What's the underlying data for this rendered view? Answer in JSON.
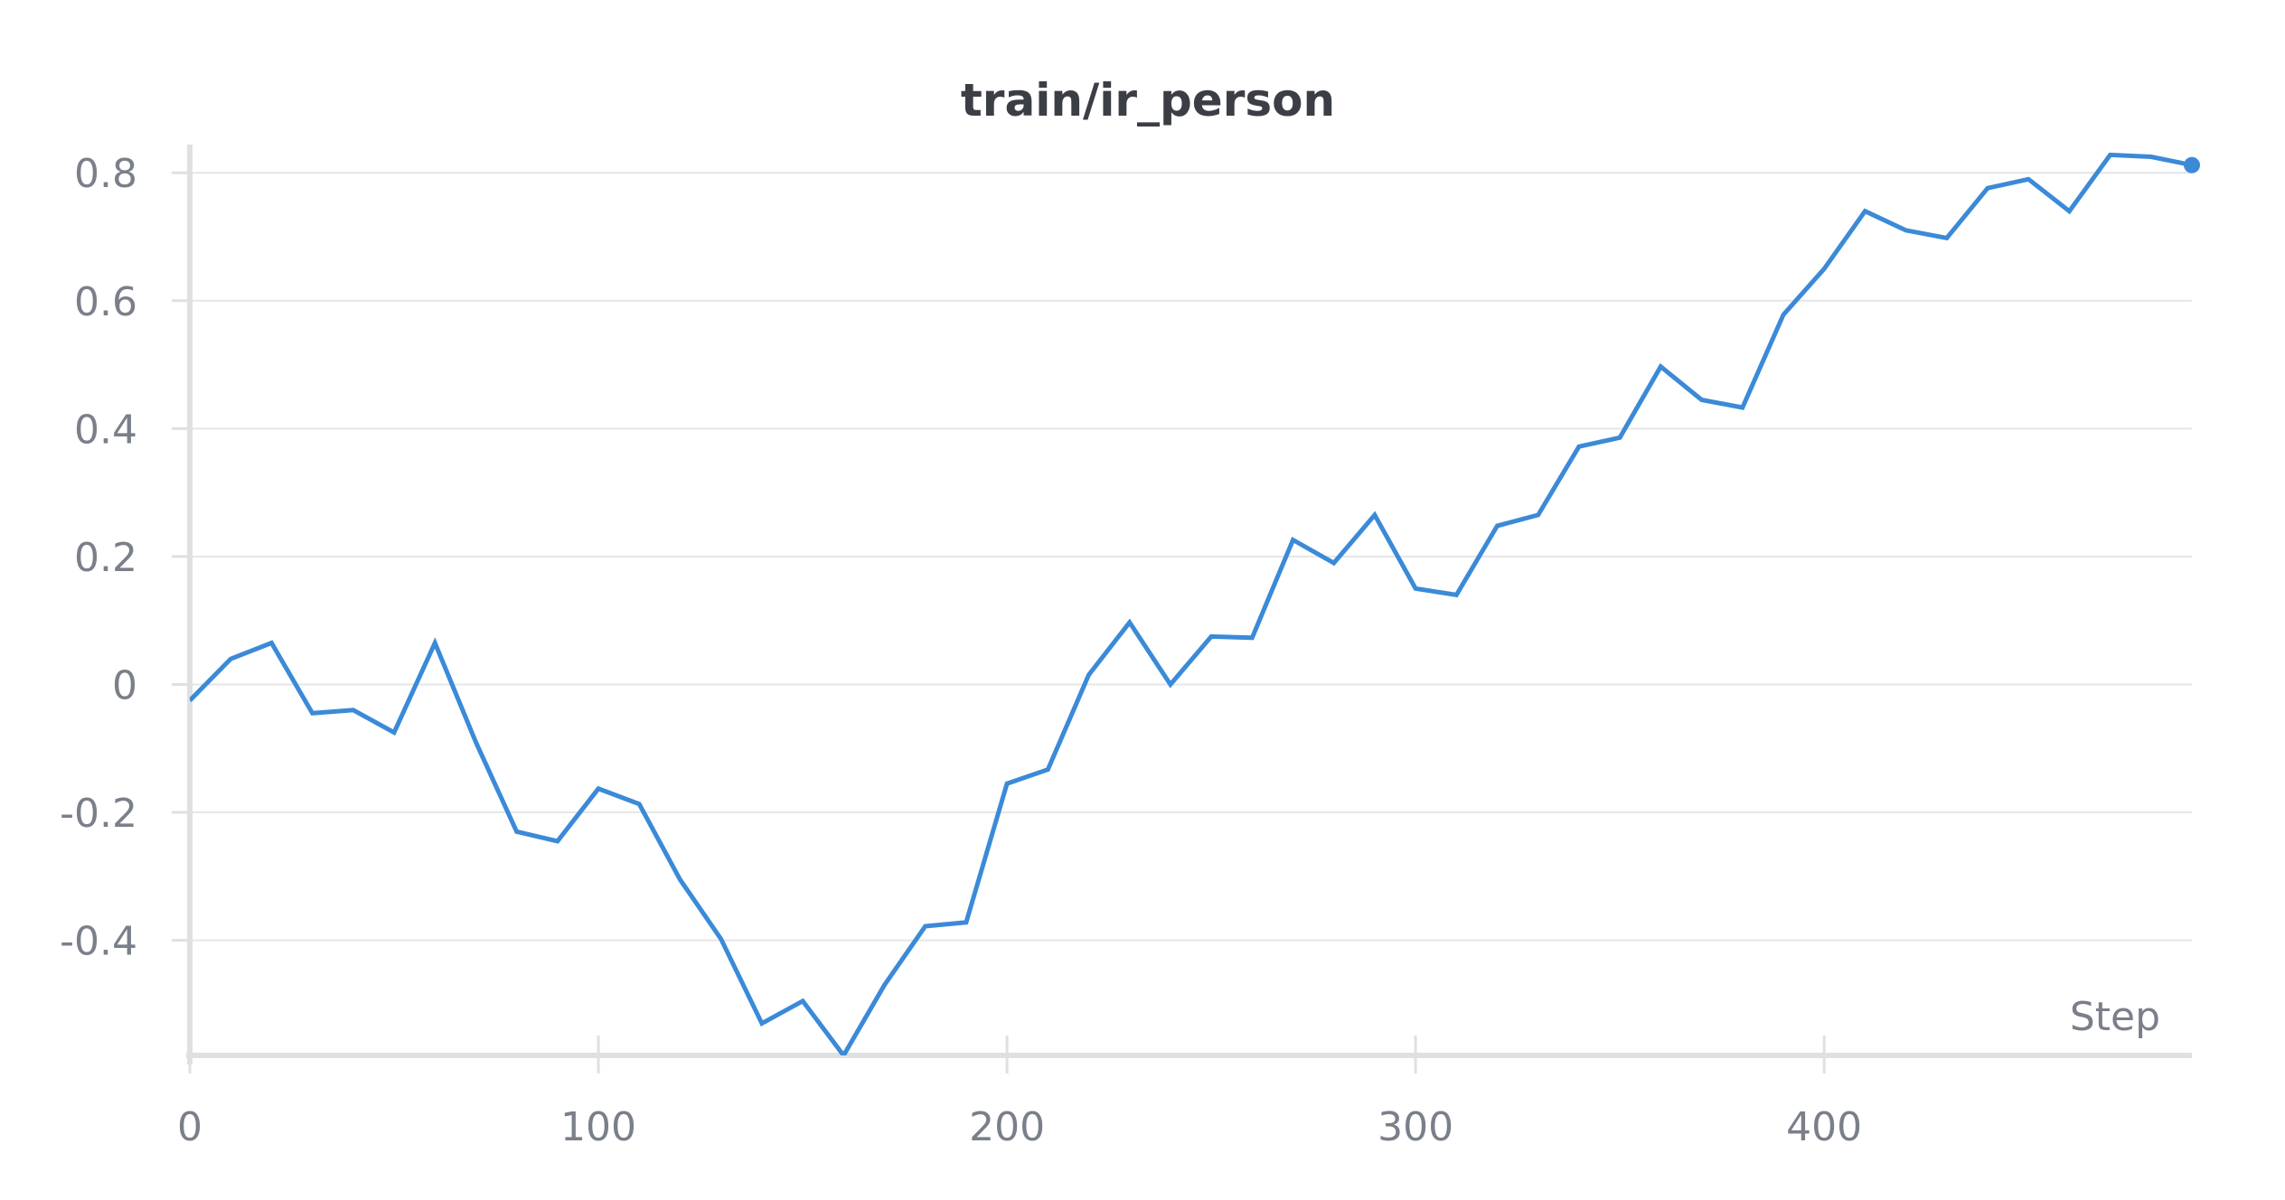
{
  "chart_data": {
    "type": "line",
    "title": "train/ir_person",
    "xlabel": "Step",
    "ylabel": "",
    "xlim": [
      0,
      490
    ],
    "ylim": [
      -0.58,
      0.83
    ],
    "x_ticks": [
      0,
      100,
      200,
      300,
      400
    ],
    "x_tick_labels": [
      "0",
      "100",
      "200",
      "300",
      "400"
    ],
    "y_ticks": [
      0.8,
      0.6,
      0.4,
      0.2,
      0,
      -0.2,
      -0.4
    ],
    "y_tick_labels": [
      "0.8",
      "0.6",
      "0.4",
      "0.2",
      "0",
      "-0.2",
      "-0.4"
    ],
    "grid": true,
    "legend": "none",
    "colors": {
      "line": "#3b8ad8",
      "grid": "#e6e6e6",
      "axis": "#e0e0e0",
      "text": "#7a7f8a",
      "title": "#3b3e45"
    },
    "series": [
      {
        "x": [
          0,
          10,
          20,
          30,
          40,
          50,
          60,
          70,
          80,
          90,
          100,
          110,
          120,
          130,
          140,
          150,
          160,
          170,
          180,
          190,
          200,
          210,
          220,
          230,
          240,
          250,
          260,
          270,
          280,
          290,
          300,
          310,
          320,
          330,
          340,
          350,
          360,
          370,
          380,
          390,
          400,
          410,
          420,
          430,
          440,
          450,
          460,
          470,
          480,
          490
        ],
        "values": [
          -0.025,
          0.04,
          0.065,
          -0.045,
          -0.04,
          -0.075,
          0.065,
          -0.09,
          -0.23,
          -0.245,
          -0.163,
          -0.187,
          -0.305,
          -0.398,
          -0.53,
          -0.495,
          -0.58,
          -0.47,
          -0.378,
          -0.372,
          -0.155,
          -0.133,
          0.015,
          0.097,
          0.0,
          0.075,
          0.073,
          0.226,
          0.19,
          0.265,
          0.15,
          0.14,
          0.248,
          0.265,
          0.372,
          0.386,
          0.497,
          0.445,
          0.433,
          0.578,
          0.65,
          0.74,
          0.71,
          0.698,
          0.776,
          0.79,
          0.74,
          0.828,
          0.825,
          0.812
        ]
      }
    ]
  }
}
